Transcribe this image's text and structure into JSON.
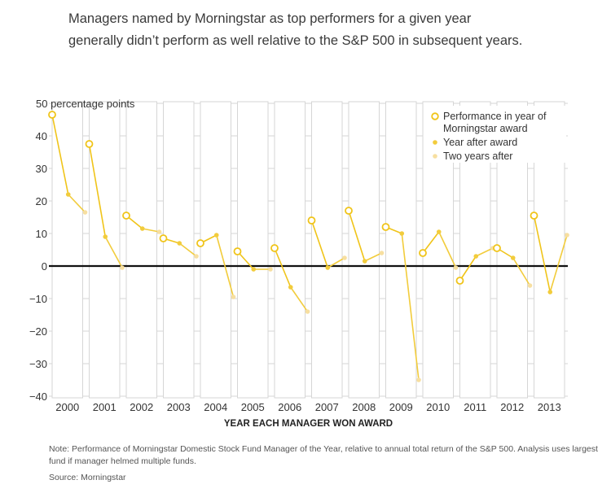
{
  "title": "Managers named by Morningstar as top performers for a given year generally didn’t perform as well relative to the S&P 500 in subsequent years.",
  "note": "Note: Performance of Morningstar Domestic Stock Fund Manager of the Year, relative to annual total return of the S&P 500. Analysis uses largest fund if manager helmed multiple funds.",
  "source": "Source: Morningstar",
  "colors": {
    "award": "#f0c419",
    "year_after": "#f2cc3c",
    "two_years_after": "#f7dfa0",
    "zero_line": "#111111",
    "grid": "#d6d6d6"
  },
  "chart_data": {
    "type": "line",
    "title": "",
    "xlabel": "YEAR EACH MANAGER WON AWARD",
    "ylabel": "",
    "ylim": [
      -40,
      50
    ],
    "y_ticks": [
      50,
      40,
      30,
      20,
      10,
      0,
      -10,
      -20,
      -30,
      -40
    ],
    "y_tick_labels": [
      "50 percentage points",
      "40",
      "30",
      "20",
      "10",
      "0",
      "−10",
      "−20",
      "−30",
      "−40"
    ],
    "categories": [
      "2000",
      "2001",
      "2002",
      "2003",
      "2004",
      "2005",
      "2006",
      "2007",
      "2008",
      "2009",
      "2010",
      "2011",
      "2012",
      "2013"
    ],
    "legend_position": "top-right",
    "series": [
      {
        "name": "Performance in year of Morningstar award",
        "values": [
          46.5,
          37.5,
          15.5,
          8.5,
          7,
          4.5,
          5.5,
          14,
          17,
          12,
          4,
          -4.5,
          5.5,
          15.5
        ]
      },
      {
        "name": "Year after award",
        "values": [
          22,
          9,
          11.5,
          7,
          9.5,
          -1,
          -6.5,
          -0.5,
          1.5,
          10,
          10.5,
          3,
          2.5,
          -8
        ]
      },
      {
        "name": "Two years after",
        "values": [
          16.5,
          -0.5,
          10.5,
          3,
          -9.5,
          -1,
          -14,
          2.5,
          4,
          -35,
          -0.5,
          5.5,
          -6,
          9.5
        ]
      }
    ]
  }
}
